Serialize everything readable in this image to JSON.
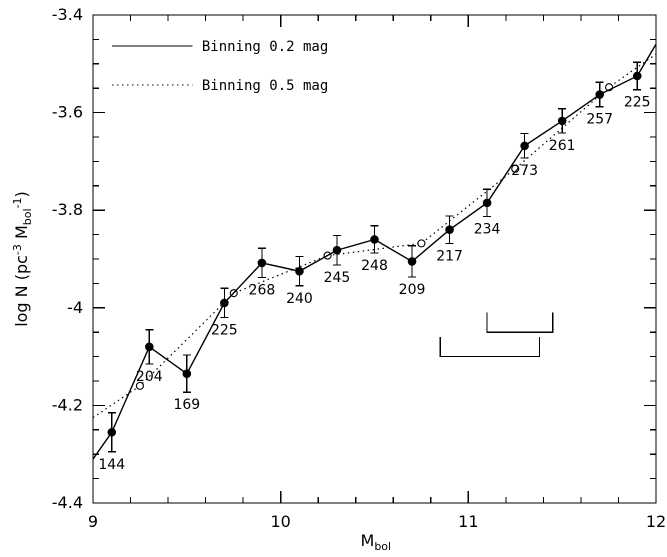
{
  "chart_data": {
    "type": "line",
    "xlabel": "M",
    "xlabel_sub": "bol",
    "ylabel_main": "log N (pc",
    "ylabel_sup": "-3",
    "ylabel_mid": " M",
    "ylabel_sub": "bol",
    "ylabel_sup2": "-1",
    "ylabel_close": ")",
    "xlim": [
      9,
      12
    ],
    "ylim": [
      -4.4,
      -3.4
    ],
    "x_ticks": [
      9,
      10,
      11,
      12
    ],
    "x_tick_labels": [
      "9",
      "10",
      "11",
      "12"
    ],
    "y_ticks": [
      -4.4,
      -4.2,
      -4.0,
      -3.8,
      -3.6,
      -3.4
    ],
    "y_tick_labels": [
      "-4.4",
      "-4.2",
      "-4",
      "-3.8",
      "-3.6",
      "-3.4"
    ],
    "grid": false,
    "legend_position": "top-left",
    "series": [
      {
        "name": "Binning 0.2 mag",
        "line_style": "solid",
        "marker": "filled-circle",
        "points": [
          {
            "x": 9.1,
            "y": -4.255,
            "err": 0.04,
            "count": "144"
          },
          {
            "x": 9.3,
            "y": -4.08,
            "err": 0.035,
            "count": "204"
          },
          {
            "x": 9.5,
            "y": -4.135,
            "err": 0.038,
            "count": "169"
          },
          {
            "x": 9.7,
            "y": -3.99,
            "err": 0.03,
            "count": "225"
          },
          {
            "x": 9.9,
            "y": -3.908,
            "err": 0.03,
            "count": "268"
          },
          {
            "x": 10.1,
            "y": -3.925,
            "err": 0.03,
            "count": "240"
          },
          {
            "x": 10.3,
            "y": -3.882,
            "err": 0.03,
            "count": "245"
          },
          {
            "x": 10.5,
            "y": -3.86,
            "err": 0.028,
            "count": "248"
          },
          {
            "x": 10.7,
            "y": -3.905,
            "err": 0.032,
            "count": "209"
          },
          {
            "x": 10.9,
            "y": -3.84,
            "err": 0.028,
            "count": "217"
          },
          {
            "x": 11.1,
            "y": -3.785,
            "err": 0.028,
            "count": "234"
          },
          {
            "x": 11.3,
            "y": -3.668,
            "err": 0.025,
            "count": "273"
          },
          {
            "x": 11.5,
            "y": -3.617,
            "err": 0.025,
            "count": "261"
          },
          {
            "x": 11.7,
            "y": -3.563,
            "err": 0.025,
            "count": "257"
          },
          {
            "x": 11.9,
            "y": -3.525,
            "err": 0.028,
            "count": "225"
          }
        ]
      },
      {
        "name": "Binning 0.5 mag",
        "line_style": "dotted",
        "marker": "open-circle",
        "points": [
          {
            "x": 9.0,
            "y": -4.225
          },
          {
            "x": 9.25,
            "y": -4.16
          },
          {
            "x": 9.75,
            "y": -3.97
          },
          {
            "x": 10.25,
            "y": -3.893
          },
          {
            "x": 10.75,
            "y": -3.868
          },
          {
            "x": 11.25,
            "y": -3.715
          },
          {
            "x": 11.75,
            "y": -3.548
          },
          {
            "x": 12.0,
            "y": -3.48
          }
        ]
      }
    ],
    "brackets": [
      {
        "x_start": 11.1,
        "x_end": 11.45,
        "y_top": -4.01,
        "y_bottom": -4.05
      },
      {
        "x_start": 10.85,
        "x_end": 11.38,
        "y_top": -4.06,
        "y_bottom": -4.1
      }
    ],
    "colors": {
      "line": "#000000",
      "background": "#ffffff"
    }
  }
}
